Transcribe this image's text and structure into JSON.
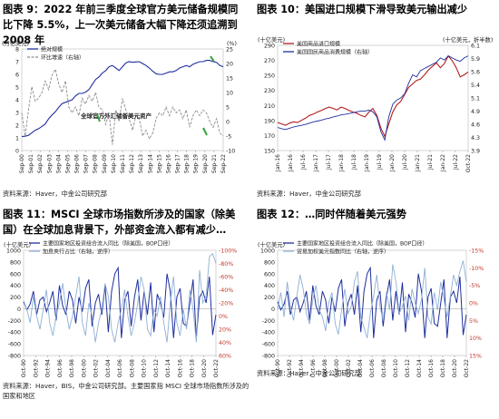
{
  "panels": [
    {
      "title": "图表 9：2022 年前三季度全球官方美元储备规模同比下降 5.5%，上一次美元储备大幅下降还须追溯到 2008 年",
      "source": "资料来源：Haver，中金公司研究部"
    },
    {
      "title": "图表 10：美国进口规模下滑导致美元输出减少",
      "source": "资料来源：Haver，中金公司研究部"
    },
    {
      "title": "图表 11：MSCI 全球市场指数所涉及的国家（除美国）在全球加息背景下，外部资金流入都有减少…",
      "source": "资料来源：Haver，BIS，中金公司研究部。主要国家指 MSCI 全球市场指数所涉及的国家和地区"
    },
    {
      "title": "图表 12：…同时伴随着美元强势",
      "source": "资料来源：Haver，中金公司研究部"
    }
  ],
  "chart_data": [
    {
      "type": "line",
      "title": "全球官方外汇储备美元资产",
      "ylabel_left": "(万亿美元)",
      "ylabel_right": "(%)",
      "x_ticks": [
        "Sep-00",
        "Sep-01",
        "Sep-02",
        "Sep-03",
        "Sep-04",
        "Sep-05",
        "Sep-06",
        "Sep-07",
        "Sep-08",
        "Sep-09",
        "Sep-10",
        "Sep-11",
        "Sep-12",
        "Sep-13",
        "Sep-14",
        "Sep-15",
        "Sep-16",
        "Sep-17",
        "Sep-18",
        "Sep-19",
        "Sep-20",
        "Sep-21",
        "Sep-22"
      ],
      "ylim_left": [
        0,
        8
      ],
      "yticks_left": [
        "0",
        "1",
        "2",
        "3",
        "4",
        "5",
        "6",
        "7",
        "8"
      ],
      "ylim_right": [
        -10,
        25
      ],
      "yticks_right": [
        "-10",
        "-5",
        "0",
        "5",
        "10",
        "15",
        "20",
        "25"
      ],
      "series": [
        {
          "name": "绝对规模",
          "axis": "left",
          "color": "#1f2f9e",
          "values": [
            1.1,
            1.13,
            1.2,
            1.4,
            1.6,
            1.72,
            1.9,
            2.1,
            2.5,
            2.8,
            3.05,
            3.4,
            3.7,
            3.8,
            3.9,
            4.0,
            4.3,
            4.5,
            4.5,
            4.6,
            4.8,
            5.2,
            5.6,
            5.8,
            6.1,
            6.3,
            6.6,
            6.7,
            6.5,
            6.3,
            6.6,
            6.9,
            7.0,
            6.95,
            6.98,
            7.0,
            6.85,
            6.7,
            6.5,
            6.25,
            6.05,
            6.0,
            6.0,
            6.1,
            6.2,
            6.2,
            6.3,
            6.5,
            6.6,
            6.7,
            6.6,
            6.8,
            6.9,
            7.0,
            7.0,
            7.1,
            7.1,
            7.0,
            6.95,
            6.7,
            6.6
          ]
        },
        {
          "name": "环比增速（右轴）",
          "axis": "right",
          "color": "#8c8c8c",
          "values": [
            3,
            -5,
            4,
            12,
            7,
            8,
            10,
            14,
            11,
            16,
            18,
            13,
            10,
            14,
            5,
            3,
            5,
            2,
            8,
            6,
            9,
            7,
            10,
            5,
            4,
            -1,
            3,
            -8,
            4,
            0,
            8,
            4,
            1,
            -3,
            2,
            1,
            -5,
            -3,
            -6,
            -4,
            1,
            3,
            2,
            5,
            2,
            5,
            3,
            4,
            1,
            4,
            -2,
            2,
            4,
            2,
            4,
            3,
            0,
            -2,
            1,
            -4,
            -5
          ]
        }
      ]
    },
    {
      "type": "line",
      "ylabel_left": "(十亿美元)",
      "ylabel_right": "(十亿美元，折半数)",
      "x_ticks": [
        "Jan-16",
        "Jan-16",
        "Jul-16",
        "Jan-17",
        "Jul-17",
        "Jan-18",
        "Jul-18",
        "Jan-19",
        "Jul-19",
        "Jan-20",
        "Jul-20",
        "Jan-21",
        "Jul-21",
        "Jan-22",
        "Jul-22",
        "Oct-22"
      ],
      "ylim_left": [
        150,
        300
      ],
      "yticks_left": [
        "150",
        "170",
        "190",
        "210",
        "230",
        "250",
        "270",
        "290"
      ],
      "ylim_right": [
        3.8,
        6.3
      ],
      "yticks_right": [
        "3.9",
        "4.3",
        "4.6",
        "4.9",
        "5.1",
        "5.4",
        "5.6",
        "5.9",
        "6.1"
      ],
      "series": [
        {
          "name": "美国商品进口规模",
          "axis": "left",
          "color": "#b51c1c",
          "values": [
            190,
            188,
            186,
            189,
            191,
            190,
            193,
            196,
            200,
            202,
            205,
            207,
            210,
            212,
            210,
            208,
            212,
            210,
            207,
            205,
            203,
            200,
            198,
            205,
            210,
            200,
            182,
            170,
            188,
            205,
            215,
            220,
            230,
            240,
            245,
            250,
            252,
            258,
            265,
            270,
            275,
            268,
            274,
            285,
            278,
            268,
            255,
            258,
            262
          ]
        },
        {
          "name": "美国国民商品消费规模（右轴）",
          "axis": "right",
          "color": "#1f2f9e",
          "values": [
            4.35,
            4.32,
            4.3,
            4.33,
            4.36,
            4.38,
            4.4,
            4.42,
            4.45,
            4.48,
            4.5,
            4.52,
            4.55,
            4.57,
            4.6,
            4.62,
            4.65,
            4.66,
            4.68,
            4.7,
            4.72,
            4.74,
            4.74,
            4.76,
            4.72,
            4.6,
            4.25,
            4.05,
            4.6,
            4.9,
            5.0,
            5.05,
            5.15,
            5.4,
            5.6,
            5.55,
            5.7,
            5.75,
            5.8,
            5.85,
            5.9,
            6.0,
            5.95,
            6.05,
            6.0,
            5.95,
            5.92,
            6.0,
            6.05
          ]
        }
      ]
    },
    {
      "type": "line",
      "ylabel_left": "(十亿美元)",
      "x_ticks": [
        "Oct-90",
        "Oct-92",
        "Oct-94",
        "Oct-96",
        "Oct-98",
        "Oct-00",
        "Oct-02",
        "Oct-04",
        "Oct-06",
        "Oct-08",
        "Oct-10",
        "Oct-12",
        "Oct-14",
        "Oct-16",
        "Oct-18",
        "Oct-20",
        "Oct-22"
      ],
      "ylim_left": [
        -800,
        1000
      ],
      "yticks_left": [
        "-800",
        "-600",
        "-400",
        "-200",
        "0",
        "200",
        "400",
        "600",
        "800",
        "1000"
      ],
      "ylim_right": [
        -100,
        60
      ],
      "yticks_right": [
        "-100%",
        "-80%",
        "-60%",
        "-40%",
        "-20%",
        "0%",
        "20%",
        "40%",
        "60%"
      ],
      "series": [
        {
          "name": "主要国家地区投资组合流入同比（除美国，BOP口径）",
          "axis": "left",
          "color": "#1f2f9e",
          "values": [
            120,
            -20,
            80,
            300,
            -100,
            150,
            200,
            -50,
            100,
            300,
            -200,
            400,
            50,
            -100,
            300,
            150,
            -250,
            200,
            -50,
            350,
            500,
            -300,
            100,
            250,
            -100,
            400,
            -400,
            300,
            600,
            700,
            -500,
            150,
            300,
            -300,
            200,
            500,
            -200,
            300,
            -100,
            450,
            -400,
            250,
            100,
            -150,
            600,
            300,
            -500,
            200,
            350,
            -250,
            -300,
            100,
            500,
            -500,
            200,
            300,
            100,
            550,
            -450,
            -100
          ]
        },
        {
          "name": "加息央行占比（右轴，逆序）",
          "axis": "right",
          "color": "#8fb0d6",
          "values": [
            -20,
            -10,
            10,
            -30,
            0,
            20,
            -10,
            -40,
            10,
            30,
            0,
            -20,
            -50,
            -10,
            20,
            0,
            -30,
            -60,
            10,
            30,
            -20,
            0,
            40,
            10,
            -10,
            -50,
            -30,
            20,
            40,
            10,
            -10,
            -40,
            0,
            30,
            10,
            -20,
            -60,
            -40,
            20,
            30,
            -10,
            0,
            -30,
            10,
            40,
            -20,
            -60,
            10,
            30,
            -10,
            20,
            -40,
            -10,
            40,
            -70,
            -20,
            -30,
            -90,
            -95,
            -80
          ]
        }
      ]
    },
    {
      "type": "line",
      "ylabel_left": "(十亿美元)",
      "x_ticks": [
        "Oct-90",
        "Oct-92",
        "Oct-94",
        "Oct-96",
        "Oct-98",
        "Oct-00",
        "Oct-02",
        "Oct-04",
        "Oct-06",
        "Oct-08",
        "Oct-10",
        "Oct-12",
        "Oct-14",
        "Oct-16",
        "Oct-18",
        "Oct-20",
        "Oct-22"
      ],
      "ylim_left": [
        -800,
        1000
      ],
      "yticks_left": [
        "-800",
        "-600",
        "-400",
        "-200",
        "0",
        "200",
        "400",
        "600",
        "800",
        "1000"
      ],
      "ylim_right": [
        -15,
        15
      ],
      "yticks_right": [
        "-15%",
        "-10%",
        "-5%",
        "0%",
        "5%",
        "10%",
        "15%"
      ],
      "series": [
        {
          "name": "主要国家地区投资组合流入同比（除美国，BOP口径）",
          "axis": "left",
          "color": "#1f2f9e",
          "values": [
            120,
            -20,
            80,
            300,
            -100,
            150,
            200,
            -50,
            100,
            300,
            -200,
            400,
            50,
            -100,
            300,
            150,
            -250,
            200,
            -50,
            350,
            500,
            -300,
            100,
            250,
            -100,
            400,
            -400,
            300,
            600,
            700,
            -500,
            150,
            300,
            -300,
            200,
            500,
            -200,
            300,
            -100,
            450,
            -400,
            250,
            100,
            -150,
            600,
            300,
            -500,
            200,
            350,
            -250,
            -300,
            100,
            500,
            -500,
            200,
            300,
            100,
            550,
            -450,
            -100
          ]
        },
        {
          "name": "贸易加权美元指数同比（右轴，逆序）",
          "axis": "right",
          "color": "#8fb0d6",
          "values": [
            2,
            -3,
            4,
            -6,
            1,
            5,
            -2,
            -8,
            -4,
            3,
            6,
            -1,
            -5,
            2,
            4,
            8,
            0,
            -3,
            6,
            9,
            2,
            -4,
            3,
            1,
            -6,
            -9,
            4,
            7,
            10,
            3,
            -2,
            -8,
            1,
            5,
            -3,
            2,
            -11,
            -6,
            3,
            1,
            -2,
            5,
            -4,
            0,
            3,
            -1,
            -10,
            4,
            6,
            -3,
            2,
            -6,
            -1,
            4,
            -2,
            -8,
            -5,
            -9,
            -12,
            -6
          ]
        }
      ]
    }
  ],
  "annotations": {
    "chart1_inner_title": "全球官方外汇储备美元资产"
  }
}
